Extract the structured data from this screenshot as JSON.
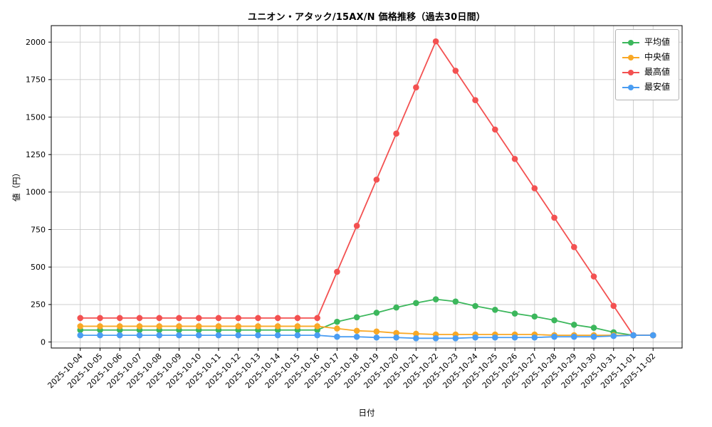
{
  "chart_data": {
    "type": "line",
    "title": "ユニオン・アタック/15AX/N 価格推移（過去30日間）",
    "xlabel": "日付",
    "ylabel": "値（円）",
    "grid": true,
    "legend_position": "top-right",
    "ylim": [
      -40,
      2110
    ],
    "yticks": [
      0,
      250,
      500,
      750,
      1000,
      1250,
      1500,
      1750,
      2000
    ],
    "x": [
      "2025-10-04",
      "2025-10-05",
      "2025-10-06",
      "2025-10-07",
      "2025-10-08",
      "2025-10-09",
      "2025-10-10",
      "2025-10-11",
      "2025-10-12",
      "2025-10-13",
      "2025-10-14",
      "2025-10-15",
      "2025-10-16",
      "2025-10-17",
      "2025-10-18",
      "2025-10-19",
      "2025-10-20",
      "2025-10-21",
      "2025-10-22",
      "2025-10-23",
      "2025-10-24",
      "2025-10-25",
      "2025-10-26",
      "2025-10-27",
      "2025-10-28",
      "2025-10-29",
      "2025-10-30",
      "2025-10-31",
      "2025-11-01",
      "2025-11-02"
    ],
    "series": [
      {
        "key": "average",
        "name": "平均値",
        "color": "#3cb75c",
        "values": [
          80,
          80,
          80,
          80,
          80,
          80,
          80,
          80,
          80,
          80,
          80,
          80,
          80,
          135,
          165,
          195,
          230,
          260,
          285,
          270,
          240,
          215,
          190,
          170,
          145,
          115,
          95,
          65,
          45,
          45
        ]
      },
      {
        "key": "median",
        "name": "中央値",
        "color": "#f9a825",
        "values": [
          105,
          105,
          105,
          105,
          105,
          105,
          105,
          105,
          105,
          105,
          105,
          105,
          105,
          90,
          75,
          70,
          60,
          55,
          50,
          50,
          50,
          50,
          50,
          50,
          45,
          45,
          45,
          45,
          45,
          45
        ]
      },
      {
        "key": "max",
        "name": "最高値",
        "color": "#f35151",
        "values": [
          160,
          160,
          160,
          160,
          160,
          160,
          160,
          160,
          160,
          160,
          160,
          160,
          160,
          468,
          775,
          1083,
          1390,
          1698,
          2005,
          1809,
          1613,
          1417,
          1221,
          1025,
          829,
          633,
          437,
          241,
          45,
          45
        ]
      },
      {
        "key": "min",
        "name": "最安値",
        "color": "#4a9df2",
        "values": [
          45,
          45,
          45,
          45,
          45,
          45,
          45,
          45,
          45,
          45,
          45,
          45,
          45,
          35,
          35,
          30,
          30,
          25,
          25,
          25,
          30,
          30,
          30,
          30,
          35,
          35,
          35,
          40,
          45,
          45
        ]
      }
    ]
  }
}
